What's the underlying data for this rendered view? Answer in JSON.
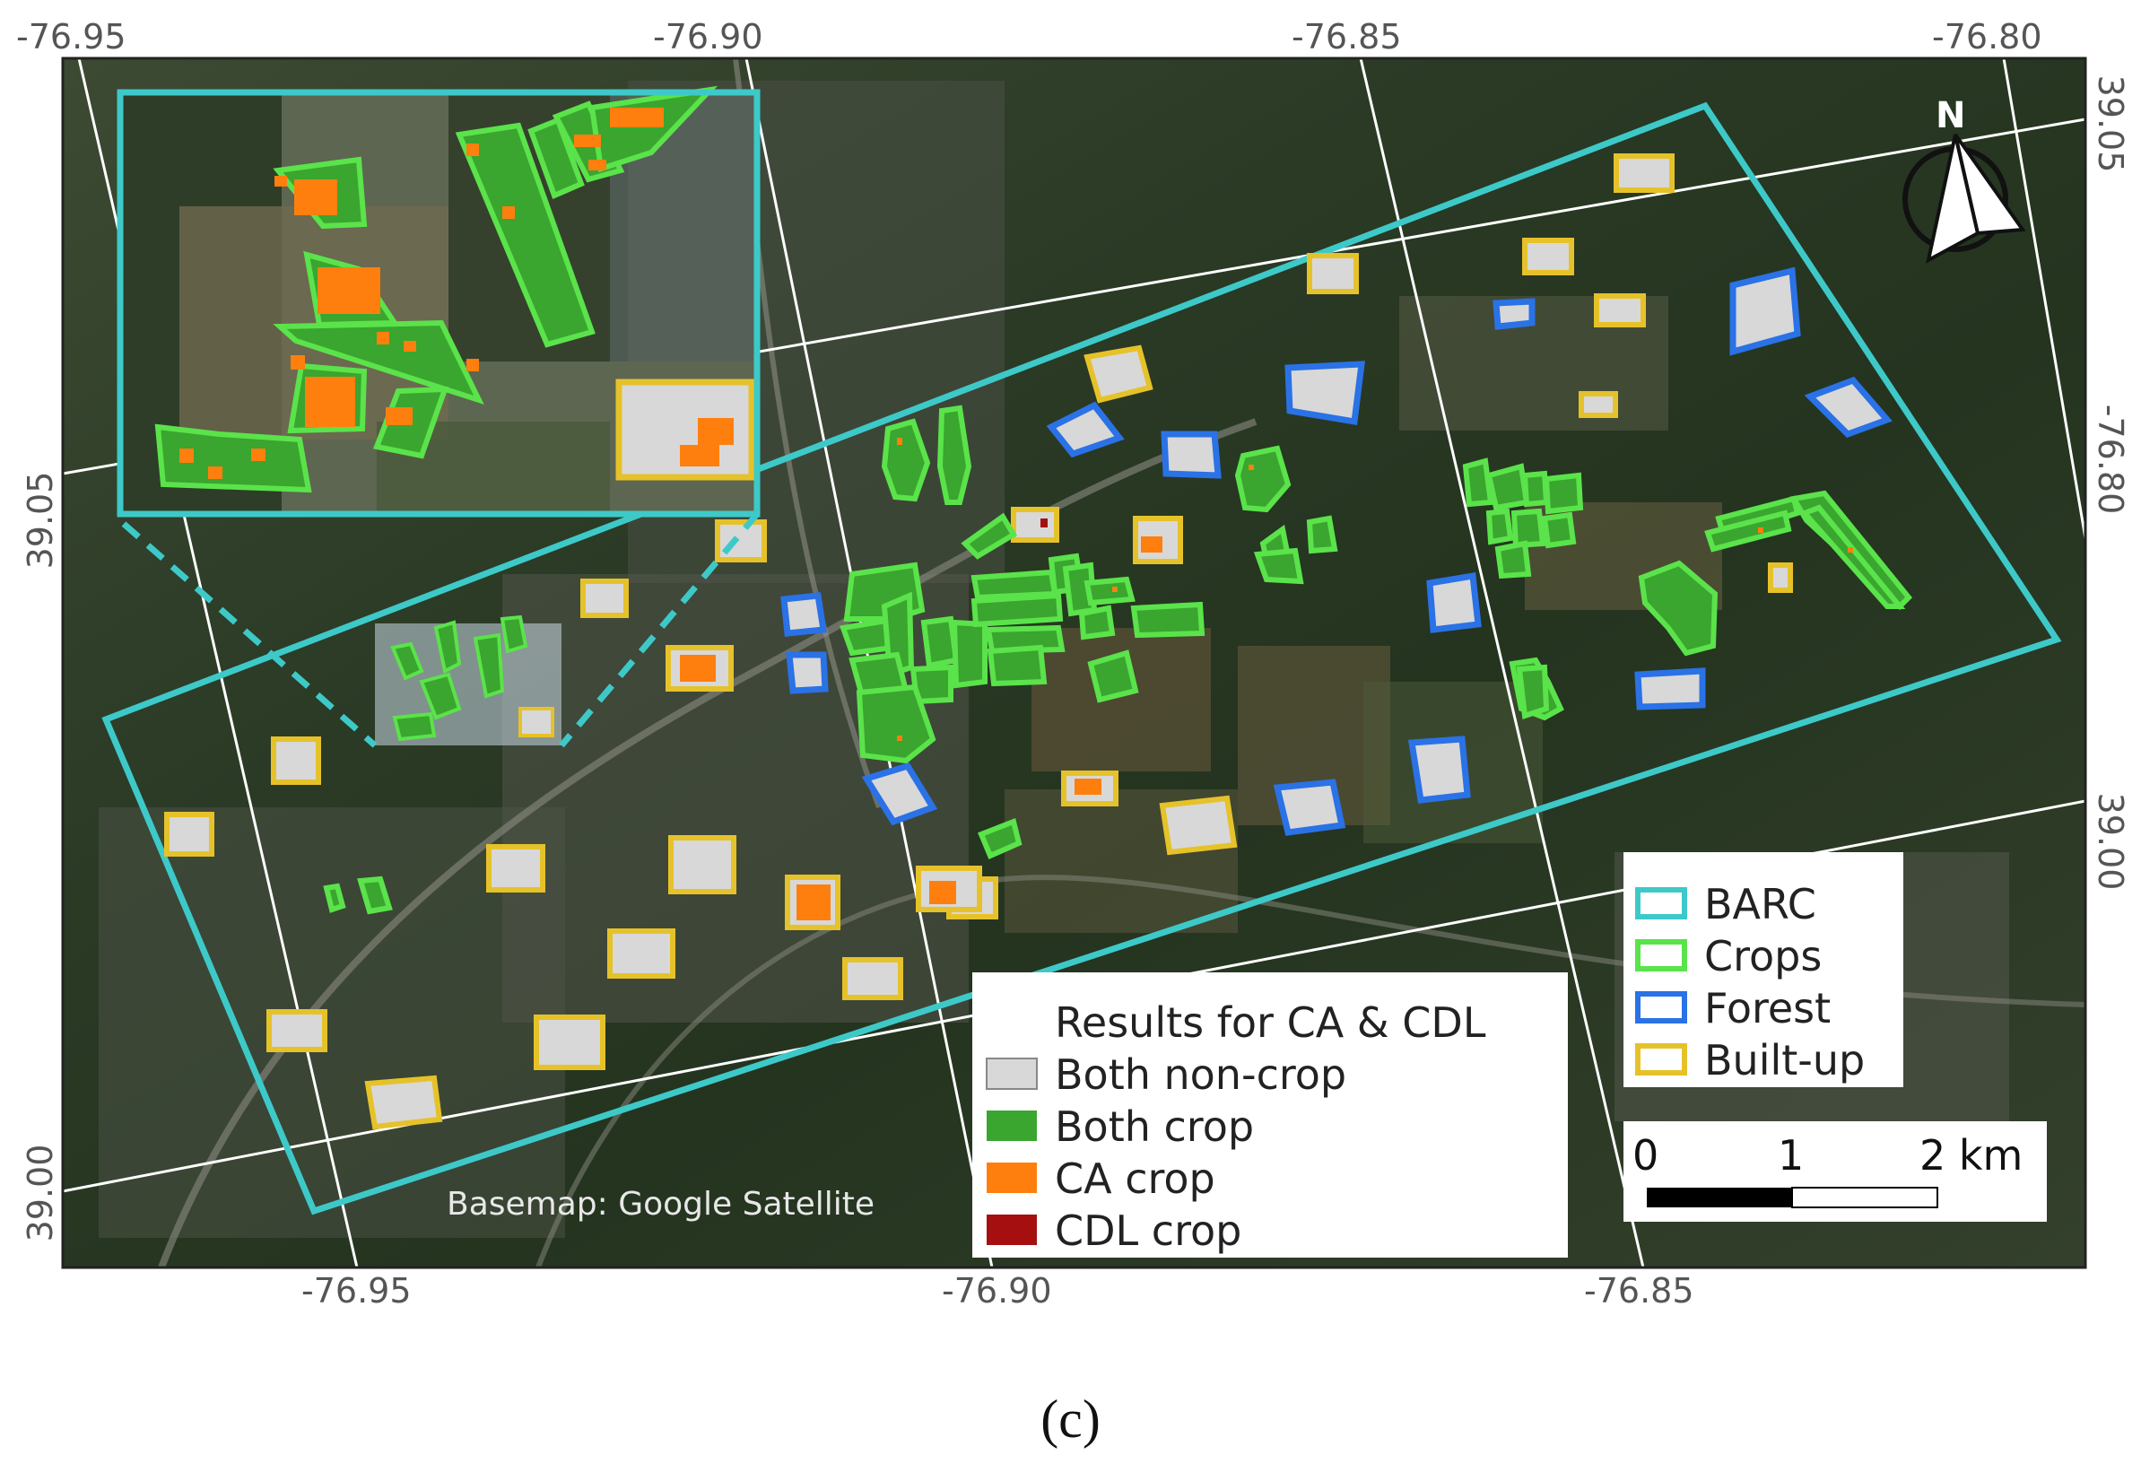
{
  "axes": {
    "top_ticks": [
      "-76.95",
      "-76.90",
      "-76.85",
      "-76.80"
    ],
    "bottom_ticks": [
      "-76.95",
      "-76.90",
      "-76.85"
    ],
    "left_ticks": [
      "39.05",
      "39.00"
    ],
    "right_ticks": [
      "39.05",
      "-76.80",
      "39.00"
    ]
  },
  "legend_results": {
    "title": "Results for CA & CDL",
    "items": [
      {
        "label": "Both non-crop",
        "color": "#d8d8d8"
      },
      {
        "label": "Both crop",
        "color": "#3aa52f"
      },
      {
        "label": "CA crop",
        "color": "#ff7f0e"
      },
      {
        "label": "CDL crop",
        "color": "#a50f0f"
      }
    ]
  },
  "legend_outlines": {
    "items": [
      {
        "label": "BARC",
        "color": "#3ec9c9"
      },
      {
        "label": "Crops",
        "color": "#5ae34a"
      },
      {
        "label": "Forest",
        "color": "#2a72e6"
      },
      {
        "label": "Built-up",
        "color": "#e6c22a"
      }
    ]
  },
  "scale_bar": {
    "labels": [
      "0",
      "1",
      "2 km"
    ]
  },
  "north_arrow": {
    "label": "N"
  },
  "basemap_credit": "Basemap: Google Satellite",
  "caption": "(c)"
}
